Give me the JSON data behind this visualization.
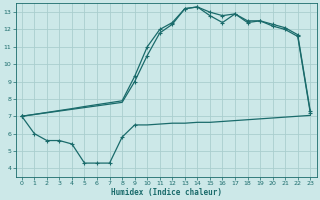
{
  "xlabel": "Humidex (Indice chaleur)",
  "bg_color": "#cce8e8",
  "grid_color": "#aacece",
  "line_color": "#1a6b6b",
  "xlim": [
    -0.5,
    23.5
  ],
  "ylim": [
    3.5,
    13.5
  ],
  "xticks": [
    0,
    1,
    2,
    3,
    4,
    5,
    6,
    7,
    8,
    9,
    10,
    11,
    12,
    13,
    14,
    15,
    16,
    17,
    18,
    19,
    20,
    21,
    22,
    23
  ],
  "yticks": [
    4,
    5,
    6,
    7,
    8,
    9,
    10,
    11,
    12,
    13
  ],
  "line1_x": [
    0,
    1,
    2,
    3,
    4,
    5,
    6,
    7,
    8,
    9,
    10,
    11,
    12,
    13,
    14,
    15,
    16,
    17,
    18,
    19,
    20,
    21,
    22,
    23
  ],
  "line1_y": [
    7.0,
    6.0,
    5.6,
    5.6,
    5.4,
    4.3,
    4.3,
    4.3,
    5.8,
    6.5,
    6.5,
    6.55,
    6.6,
    6.6,
    6.65,
    6.65,
    6.7,
    6.75,
    6.8,
    6.85,
    6.9,
    6.95,
    7.0,
    7.05
  ],
  "line2_x": [
    0,
    1,
    2,
    3,
    4,
    5,
    6,
    7,
    8,
    9,
    10,
    11,
    12,
    13,
    14,
    15,
    16,
    17,
    18,
    19,
    20,
    21,
    22,
    23
  ],
  "line2_y": [
    7.0,
    7.11,
    7.22,
    7.33,
    7.44,
    7.56,
    7.67,
    7.78,
    7.89,
    9.3,
    11.0,
    12.0,
    12.4,
    13.2,
    13.3,
    13.0,
    12.8,
    12.9,
    12.5,
    12.5,
    12.3,
    12.1,
    11.7,
    7.3
  ],
  "line3_x": [
    0,
    1,
    2,
    3,
    4,
    5,
    6,
    7,
    8,
    9,
    10,
    11,
    12,
    13,
    14,
    15,
    16,
    17,
    18,
    19,
    20,
    21,
    22,
    23
  ],
  "line3_y": [
    7.0,
    7.1,
    7.2,
    7.3,
    7.4,
    7.5,
    7.6,
    7.7,
    7.8,
    9.0,
    10.5,
    11.8,
    12.3,
    13.2,
    13.3,
    12.8,
    12.4,
    12.9,
    12.4,
    12.5,
    12.2,
    12.0,
    11.6,
    7.2
  ],
  "markers1_x": [
    0,
    1,
    2,
    3,
    4,
    5,
    6,
    7,
    8,
    9
  ],
  "markers1_y": [
    7.0,
    6.0,
    5.6,
    5.6,
    5.4,
    4.3,
    4.3,
    4.3,
    5.8,
    6.5
  ],
  "markers2_x": [
    0,
    9,
    10,
    11,
    12,
    13,
    14,
    15,
    16,
    17,
    18,
    19,
    20,
    21,
    22,
    23
  ],
  "markers2_y": [
    7.0,
    9.3,
    11.0,
    12.0,
    12.4,
    13.2,
    13.3,
    13.0,
    12.8,
    12.9,
    12.5,
    12.5,
    12.3,
    12.1,
    11.7,
    7.3
  ],
  "markers3_x": [
    0,
    9,
    10,
    11,
    12,
    13,
    14,
    15,
    16,
    17,
    18,
    19,
    20,
    21,
    22,
    23
  ],
  "markers3_y": [
    7.0,
    9.0,
    10.5,
    11.8,
    12.3,
    13.2,
    13.3,
    12.8,
    12.4,
    12.9,
    12.4,
    12.5,
    12.2,
    12.0,
    11.6,
    7.2
  ]
}
